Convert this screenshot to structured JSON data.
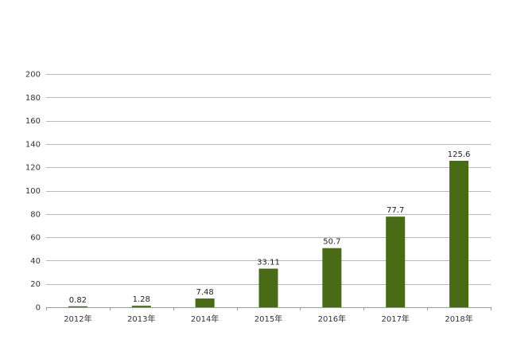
{
  "chart_data": {
    "type": "bar",
    "categories": [
      "2012年",
      "2013年",
      "2014年",
      "2015年",
      "2016年",
      "2017年",
      "2018年"
    ],
    "values": [
      0.82,
      1.28,
      7.48,
      33.11,
      50.7,
      77.7,
      125.6
    ],
    "value_labels": [
      "0.82",
      "1.28",
      "7.48",
      "33.11",
      "50.7",
      "77.7",
      "125.6"
    ],
    "title": "",
    "xlabel": "",
    "ylabel": "",
    "ylim": [
      0,
      200
    ],
    "yticks": [
      0,
      20,
      40,
      60,
      80,
      100,
      120,
      140,
      160,
      180,
      200
    ],
    "ytick_labels": [
      "0",
      "20",
      "40",
      "60",
      "80",
      "100",
      "120",
      "140",
      "160",
      "180",
      "200"
    ],
    "grid": true,
    "legend": "none",
    "bar_color": "#4a6b16"
  }
}
